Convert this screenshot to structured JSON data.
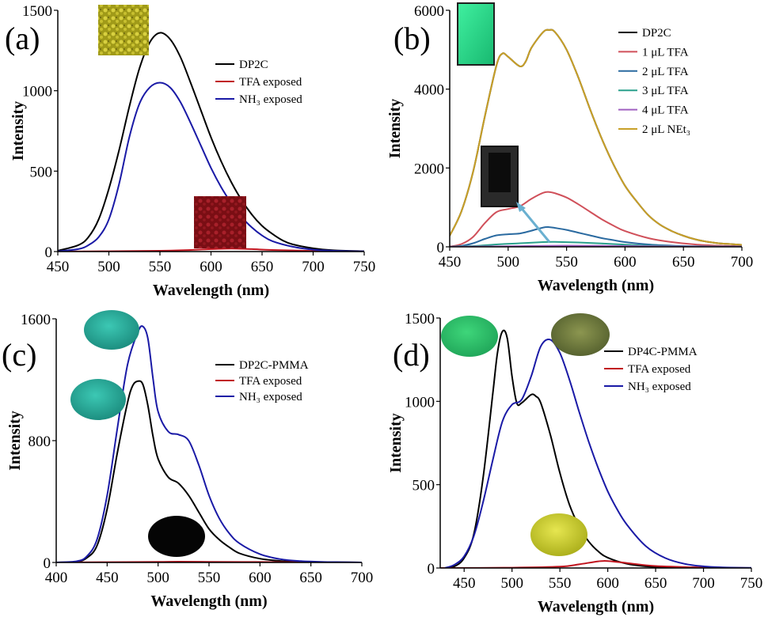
{
  "panels": [
    {
      "label": "(a)",
      "xlabel": "Wavelength (nm)",
      "ylabel": "Intensity",
      "xlim": [
        450,
        750
      ],
      "ylim": [
        0,
        1500
      ],
      "xticks": [
        450,
        500,
        550,
        600,
        650,
        700,
        750
      ],
      "yticks": [
        0,
        500,
        1000,
        1500
      ],
      "legend": [
        "DP2C",
        "TFA exposed",
        "NH₃ exposed"
      ],
      "insets": [
        {
          "name": "yellow-powder-photo",
          "color": "#b4aa1e"
        },
        {
          "name": "red-powder-photo",
          "color": "#8c1418"
        }
      ]
    },
    {
      "label": "(b)",
      "xlabel": "Wavelength (nm)",
      "ylabel": "Intensity",
      "xlim": [
        450,
        700
      ],
      "ylim": [
        0,
        6000
      ],
      "xticks": [
        450,
        500,
        550,
        600,
        650,
        700
      ],
      "yticks": [
        0,
        2000,
        4000,
        6000
      ],
      "legend": [
        "DP2C",
        "1 μL TFA",
        "2 μL TFA",
        "3 μL TFA",
        "4 μL TFA",
        "2 μL NEt₃"
      ],
      "insets": [
        {
          "name": "green-cuvette-photo",
          "color": "#28dc8c"
        },
        {
          "name": "dark-cuvette-photo",
          "color": "#2a2a2a"
        }
      ]
    },
    {
      "label": "(c)",
      "xlabel": "Wavelength (nm)",
      "ylabel": "Intensity",
      "xlim": [
        400,
        700
      ],
      "ylim": [
        0,
        1600
      ],
      "xticks": [
        400,
        450,
        500,
        550,
        600,
        650,
        700
      ],
      "yticks": [
        0,
        800,
        1600
      ],
      "legend": [
        "DP2C-PMMA",
        "TFA exposed",
        "NH₃ exposed"
      ],
      "insets": [
        {
          "name": "teal-film-photo-top",
          "color": "#2aa89a"
        },
        {
          "name": "teal-film-photo-middle",
          "color": "#2aa89a"
        },
        {
          "name": "black-film-photo",
          "color": "#050505"
        }
      ]
    },
    {
      "label": "(d)",
      "xlabel": "Wavelength (nm)",
      "ylabel": "Intensity",
      "xlim": [
        425,
        750
      ],
      "ylim": [
        0,
        1500
      ],
      "xticks": [
        450,
        500,
        550,
        600,
        650,
        700,
        750
      ],
      "yticks": [
        0,
        500,
        1000,
        1500
      ],
      "legend": [
        "DP4C-PMMA",
        "TFA exposed",
        "NH₃ exposed"
      ],
      "insets": [
        {
          "name": "green-film-photo",
          "color": "#2ec06a"
        },
        {
          "name": "olive-film-photo",
          "color": "#6e7a3a"
        },
        {
          "name": "yellow-film-photo",
          "color": "#c8cc28"
        }
      ]
    }
  ],
  "chart_data": [
    {
      "type": "line",
      "title": "(a)",
      "xlabel": "Wavelength (nm)",
      "ylabel": "Intensity",
      "xlim": [
        450,
        750
      ],
      "ylim": [
        0,
        1500
      ],
      "series": [
        {
          "name": "DP2C",
          "color": "#000000",
          "x": [
            450,
            470,
            480,
            490,
            500,
            510,
            520,
            530,
            540,
            550,
            560,
            570,
            580,
            590,
            600,
            610,
            620,
            630,
            640,
            650,
            660,
            670,
            680,
            700,
            720,
            750
          ],
          "y": [
            5,
            40,
            90,
            200,
            390,
            630,
            900,
            1140,
            1300,
            1360,
            1320,
            1210,
            1050,
            880,
            710,
            560,
            430,
            320,
            230,
            160,
            110,
            70,
            45,
            20,
            8,
            2
          ]
        },
        {
          "name": "TFA exposed",
          "color": "#c0141e",
          "x": [
            450,
            500,
            550,
            580,
            600,
            620,
            640,
            660,
            700,
            750
          ],
          "y": [
            0,
            2,
            5,
            10,
            15,
            18,
            15,
            10,
            4,
            0
          ]
        },
        {
          "name": "NH₃ exposed",
          "color": "#1a1aa6",
          "x": [
            450,
            470,
            480,
            490,
            500,
            510,
            520,
            530,
            540,
            550,
            560,
            570,
            580,
            590,
            600,
            610,
            620,
            630,
            640,
            650,
            660,
            680,
            700,
            720,
            750
          ],
          "y": [
            2,
            15,
            40,
            90,
            200,
            420,
            710,
            920,
            1020,
            1050,
            1020,
            930,
            800,
            660,
            520,
            400,
            300,
            215,
            150,
            100,
            65,
            30,
            12,
            5,
            1
          ]
        }
      ]
    },
    {
      "type": "line",
      "title": "(b)",
      "xlabel": "Wavelength (nm)",
      "ylabel": "Intensity",
      "xlim": [
        450,
        700
      ],
      "ylim": [
        0,
        6000
      ],
      "series": [
        {
          "name": "DP2C",
          "color": "#000000",
          "x": [
            450,
            460,
            470,
            480,
            490,
            495,
            500,
            510,
            515,
            520,
            530,
            535,
            540,
            550,
            560,
            570,
            580,
            590,
            600,
            610,
            620,
            630,
            640,
            650,
            660,
            670,
            680,
            690,
            700
          ],
          "y": [
            280,
            900,
            1900,
            3300,
            4600,
            4900,
            4820,
            4580,
            4700,
            5050,
            5450,
            5500,
            5450,
            5000,
            4300,
            3500,
            2750,
            2100,
            1550,
            1150,
            800,
            560,
            400,
            280,
            190,
            130,
            90,
            70,
            50
          ]
        },
        {
          "name": "1 μL TFA",
          "color": "#d0505a",
          "x": [
            450,
            460,
            470,
            480,
            490,
            500,
            510,
            520,
            530,
            535,
            540,
            550,
            560,
            570,
            580,
            590,
            600,
            620,
            640,
            660,
            680,
            700
          ],
          "y": [
            5,
            70,
            250,
            600,
            880,
            960,
            1030,
            1220,
            1370,
            1390,
            1360,
            1250,
            1080,
            890,
            700,
            540,
            400,
            220,
            120,
            60,
            30,
            15
          ]
        },
        {
          "name": "2 μL TFA",
          "color": "#2a6aa0",
          "x": [
            450,
            460,
            470,
            480,
            490,
            500,
            510,
            520,
            530,
            535,
            540,
            550,
            560,
            570,
            580,
            590,
            600,
            620,
            640,
            660,
            680,
            700
          ],
          "y": [
            2,
            25,
            90,
            200,
            290,
            320,
            340,
            410,
            490,
            500,
            480,
            430,
            360,
            290,
            220,
            170,
            120,
            60,
            30,
            15,
            8,
            4
          ]
        },
        {
          "name": "3 μL TFA",
          "color": "#2aa08c",
          "x": [
            450,
            470,
            490,
            510,
            530,
            540,
            560,
            580,
            600,
            620,
            650,
            700
          ],
          "y": [
            0,
            20,
            60,
            90,
            120,
            125,
            110,
            85,
            55,
            30,
            12,
            3
          ]
        },
        {
          "name": "4 μL TFA",
          "color": "#a060c0",
          "x": [
            450,
            500,
            550,
            600,
            650,
            700
          ],
          "y": [
            0,
            15,
            30,
            20,
            8,
            2
          ]
        },
        {
          "name": "2 μL NEt₃",
          "color": "#c8a028",
          "x": [
            450,
            460,
            470,
            480,
            490,
            495,
            500,
            510,
            515,
            520,
            530,
            535,
            540,
            550,
            560,
            570,
            580,
            590,
            600,
            610,
            620,
            630,
            640,
            650,
            660,
            670,
            680,
            690,
            700
          ],
          "y": [
            280,
            900,
            1900,
            3300,
            4600,
            4900,
            4820,
            4580,
            4700,
            5050,
            5450,
            5500,
            5450,
            5000,
            4300,
            3500,
            2750,
            2100,
            1550,
            1150,
            800,
            560,
            400,
            280,
            190,
            130,
            90,
            70,
            50
          ]
        }
      ]
    },
    {
      "type": "line",
      "title": "(c)",
      "xlabel": "Wavelength (nm)",
      "ylabel": "Intensity",
      "xlim": [
        400,
        700
      ],
      "ylim": [
        0,
        1600
      ],
      "series": [
        {
          "name": "DP2C-PMMA",
          "color": "#000000",
          "x": [
            400,
            420,
            430,
            440,
            450,
            460,
            470,
            475,
            480,
            485,
            490,
            495,
            500,
            510,
            520,
            530,
            540,
            550,
            560,
            570,
            580,
            600,
            620,
            640,
            660,
            700
          ],
          "y": [
            0,
            5,
            30,
            110,
            350,
            720,
            1050,
            1160,
            1190,
            1170,
            1030,
            830,
            680,
            560,
            520,
            440,
            330,
            220,
            150,
            100,
            60,
            25,
            10,
            4,
            2,
            0
          ]
        },
        {
          "name": "TFA exposed",
          "color": "#c0141e",
          "x": [
            400,
            450,
            500,
            520,
            550,
            600,
            650,
            700
          ],
          "y": [
            0,
            2,
            4,
            5,
            4,
            3,
            1,
            0
          ]
        },
        {
          "name": "NH₃ exposed",
          "color": "#1a1aa6",
          "x": [
            400,
            420,
            430,
            440,
            450,
            460,
            470,
            480,
            485,
            490,
            495,
            500,
            510,
            520,
            530,
            540,
            550,
            560,
            570,
            580,
            600,
            620,
            640,
            660,
            680,
            700
          ],
          "y": [
            0,
            8,
            40,
            150,
            440,
            880,
            1300,
            1510,
            1550,
            1470,
            1210,
            990,
            860,
            840,
            800,
            640,
            440,
            290,
            190,
            125,
            55,
            22,
            9,
            4,
            2,
            0
          ]
        }
      ]
    },
    {
      "type": "line",
      "title": "(d)",
      "xlabel": "Wavelength (nm)",
      "ylabel": "Intensity",
      "xlim": [
        425,
        750
      ],
      "ylim": [
        0,
        1500
      ],
      "series": [
        {
          "name": "DP4C-PMMA",
          "color": "#000000",
          "x": [
            430,
            440,
            450,
            460,
            470,
            480,
            485,
            490,
            495,
            500,
            505,
            510,
            520,
            525,
            530,
            540,
            550,
            560,
            570,
            580,
            590,
            600,
            620,
            640,
            660,
            680,
            700,
            750
          ],
          "y": [
            0,
            10,
            60,
            200,
            550,
            1050,
            1300,
            1420,
            1380,
            1150,
            990,
            990,
            1040,
            1030,
            990,
            800,
            570,
            380,
            250,
            160,
            100,
            62,
            25,
            10,
            4,
            2,
            1,
            0
          ]
        },
        {
          "name": "TFA exposed",
          "color": "#c0141e",
          "x": [
            425,
            500,
            550,
            570,
            590,
            600,
            620,
            650,
            700,
            750
          ],
          "y": [
            0,
            2,
            8,
            22,
            40,
            42,
            30,
            12,
            3,
            0
          ]
        },
        {
          "name": "NH₃ exposed",
          "color": "#1a1aa6",
          "x": [
            430,
            440,
            450,
            460,
            470,
            480,
            490,
            500,
            510,
            520,
            530,
            540,
            550,
            560,
            570,
            580,
            590,
            600,
            610,
            620,
            640,
            660,
            680,
            700,
            720,
            750
          ],
          "y": [
            0,
            20,
            70,
            190,
            400,
            650,
            880,
            980,
            1010,
            1150,
            1330,
            1370,
            1290,
            1130,
            940,
            760,
            600,
            460,
            350,
            260,
            130,
            60,
            25,
            10,
            4,
            1
          ]
        }
      ]
    }
  ]
}
